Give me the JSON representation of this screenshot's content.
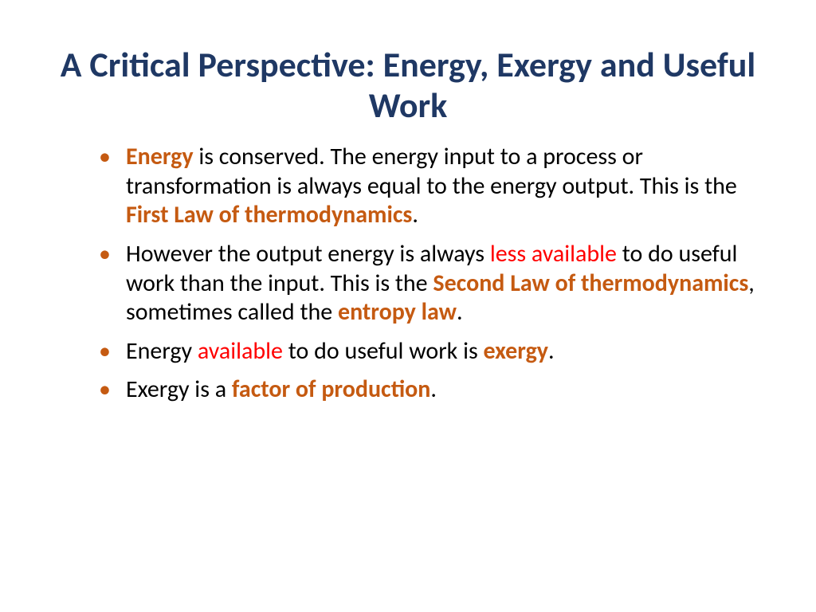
{
  "title": "A Critical Perspective: Energy, Exergy and Useful Work",
  "colors": {
    "title": "#1f3864",
    "body_text": "#000000",
    "emphasis_bold": "#c55a11",
    "emphasis_light": "#ff0000",
    "bullet": "#c55a11",
    "background": "#ffffff"
  },
  "typography": {
    "title_fontsize": 44,
    "title_weight": 700,
    "body_fontsize": 30,
    "body_weight": 400,
    "emphasis_bold_weight": 700,
    "font_family": "Calibri"
  },
  "bullets": [
    {
      "runs": [
        {
          "t": "Energy",
          "s": "em-bold"
        },
        {
          "t": " is conserved. The energy input to a process or transformation is always equal to the energy output. This is the ",
          "s": ""
        },
        {
          "t": "First Law of thermodynamics",
          "s": "em-bold"
        },
        {
          "t": ".",
          "s": ""
        }
      ]
    },
    {
      "runs": [
        {
          "t": "However the output energy is always ",
          "s": ""
        },
        {
          "t": "less available",
          "s": "em-light"
        },
        {
          "t": " to do useful work than the input. This is the ",
          "s": ""
        },
        {
          "t": "Second Law of thermodynamics",
          "s": "em-bold"
        },
        {
          "t": ", sometimes called the ",
          "s": ""
        },
        {
          "t": "entropy law",
          "s": "em-bold"
        },
        {
          "t": ".",
          "s": ""
        }
      ]
    },
    {
      "runs": [
        {
          "t": "Energy ",
          "s": ""
        },
        {
          "t": "available",
          "s": "em-light"
        },
        {
          "t": " to do useful work is ",
          "s": ""
        },
        {
          "t": "exergy",
          "s": "em-bold"
        },
        {
          "t": ".",
          "s": ""
        }
      ]
    },
    {
      "runs": [
        {
          "t": "Exergy is a ",
          "s": ""
        },
        {
          "t": "factor of production",
          "s": "em-bold"
        },
        {
          "t": ".",
          "s": ""
        }
      ]
    }
  ]
}
